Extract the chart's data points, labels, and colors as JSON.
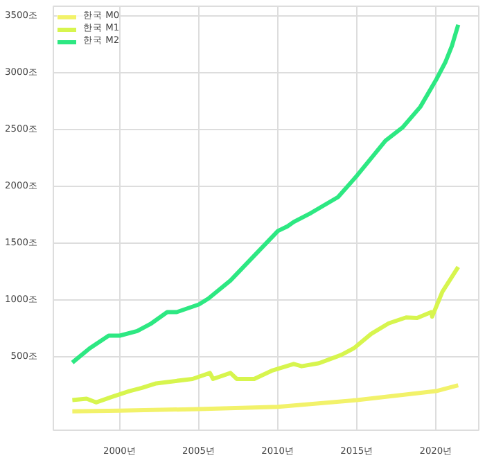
{
  "chart_data": {
    "type": "line",
    "xlim": [
      1995.8,
      2022.7
    ],
    "ylim": [
      -150,
      3580
    ],
    "xticks": [
      {
        "value": 2000,
        "label": "2000년"
      },
      {
        "value": 2005,
        "label": "2005년"
      },
      {
        "value": 2010,
        "label": "2010년"
      },
      {
        "value": 2015,
        "label": "2015년"
      },
      {
        "value": 2020,
        "label": "2020년"
      }
    ],
    "yticks": [
      {
        "value": 500,
        "label": "500조"
      },
      {
        "value": 1000,
        "label": "1000조"
      },
      {
        "value": 1500,
        "label": "1500조"
      },
      {
        "value": 2000,
        "label": "2000조"
      },
      {
        "value": 2500,
        "label": "2500조"
      },
      {
        "value": 3000,
        "label": "3000조"
      },
      {
        "value": 3500,
        "label": "3500조"
      }
    ],
    "grid": true,
    "legend": "top left",
    "marker": "none",
    "line_style": "solid",
    "series": [
      {
        "name": "한국 M0",
        "color": "#f2f26a",
        "x": [
          1997,
          2000,
          2005,
          2010,
          2015,
          2020,
          2021.4
        ],
        "values": [
          16,
          22,
          36,
          56,
          115,
          194,
          246
        ]
      },
      {
        "name": "한국 M1",
        "color": "#d7f54e",
        "x": [
          1997,
          1997.9,
          1998.5,
          1999.5,
          2000.6,
          2001.4,
          2002.3,
          2003,
          2004.6,
          2005.7,
          2005.9,
          2007,
          2007.4,
          2008.5,
          2009.6,
          2011,
          2011.5,
          2012.6,
          2014,
          2014.8,
          2015.9,
          2017,
          2018.1,
          2018.8,
          2019.7,
          2019.75,
          2020.4,
          2021.4
        ],
        "values": [
          115,
          127,
          95,
          143,
          194,
          222,
          262,
          274,
          301,
          354,
          301,
          354,
          301,
          301,
          373,
          433,
          413,
          440,
          512,
          571,
          698,
          790,
          842,
          837,
          889,
          849,
          1068,
          1286
        ]
      },
      {
        "name": "한국 M2",
        "color": "#2de882",
        "x": [
          1997,
          1998.1,
          1999.3,
          2000,
          2001.1,
          2002,
          2003,
          2003.6,
          2005,
          2005.6,
          2007,
          2008.5,
          2010,
          2010.6,
          2011,
          2012.1,
          2013.8,
          2015,
          2015.7,
          2016.8,
          2017.9,
          2019,
          2020,
          2020.6,
          2021,
          2021.4
        ],
        "values": [
          445,
          571,
          682,
          682,
          722,
          790,
          889,
          889,
          956,
          1008,
          1167,
          1385,
          1603,
          1643,
          1682,
          1762,
          1901,
          2090,
          2210,
          2397,
          2516,
          2694,
          2932,
          3091,
          3230,
          3417
        ]
      }
    ]
  }
}
